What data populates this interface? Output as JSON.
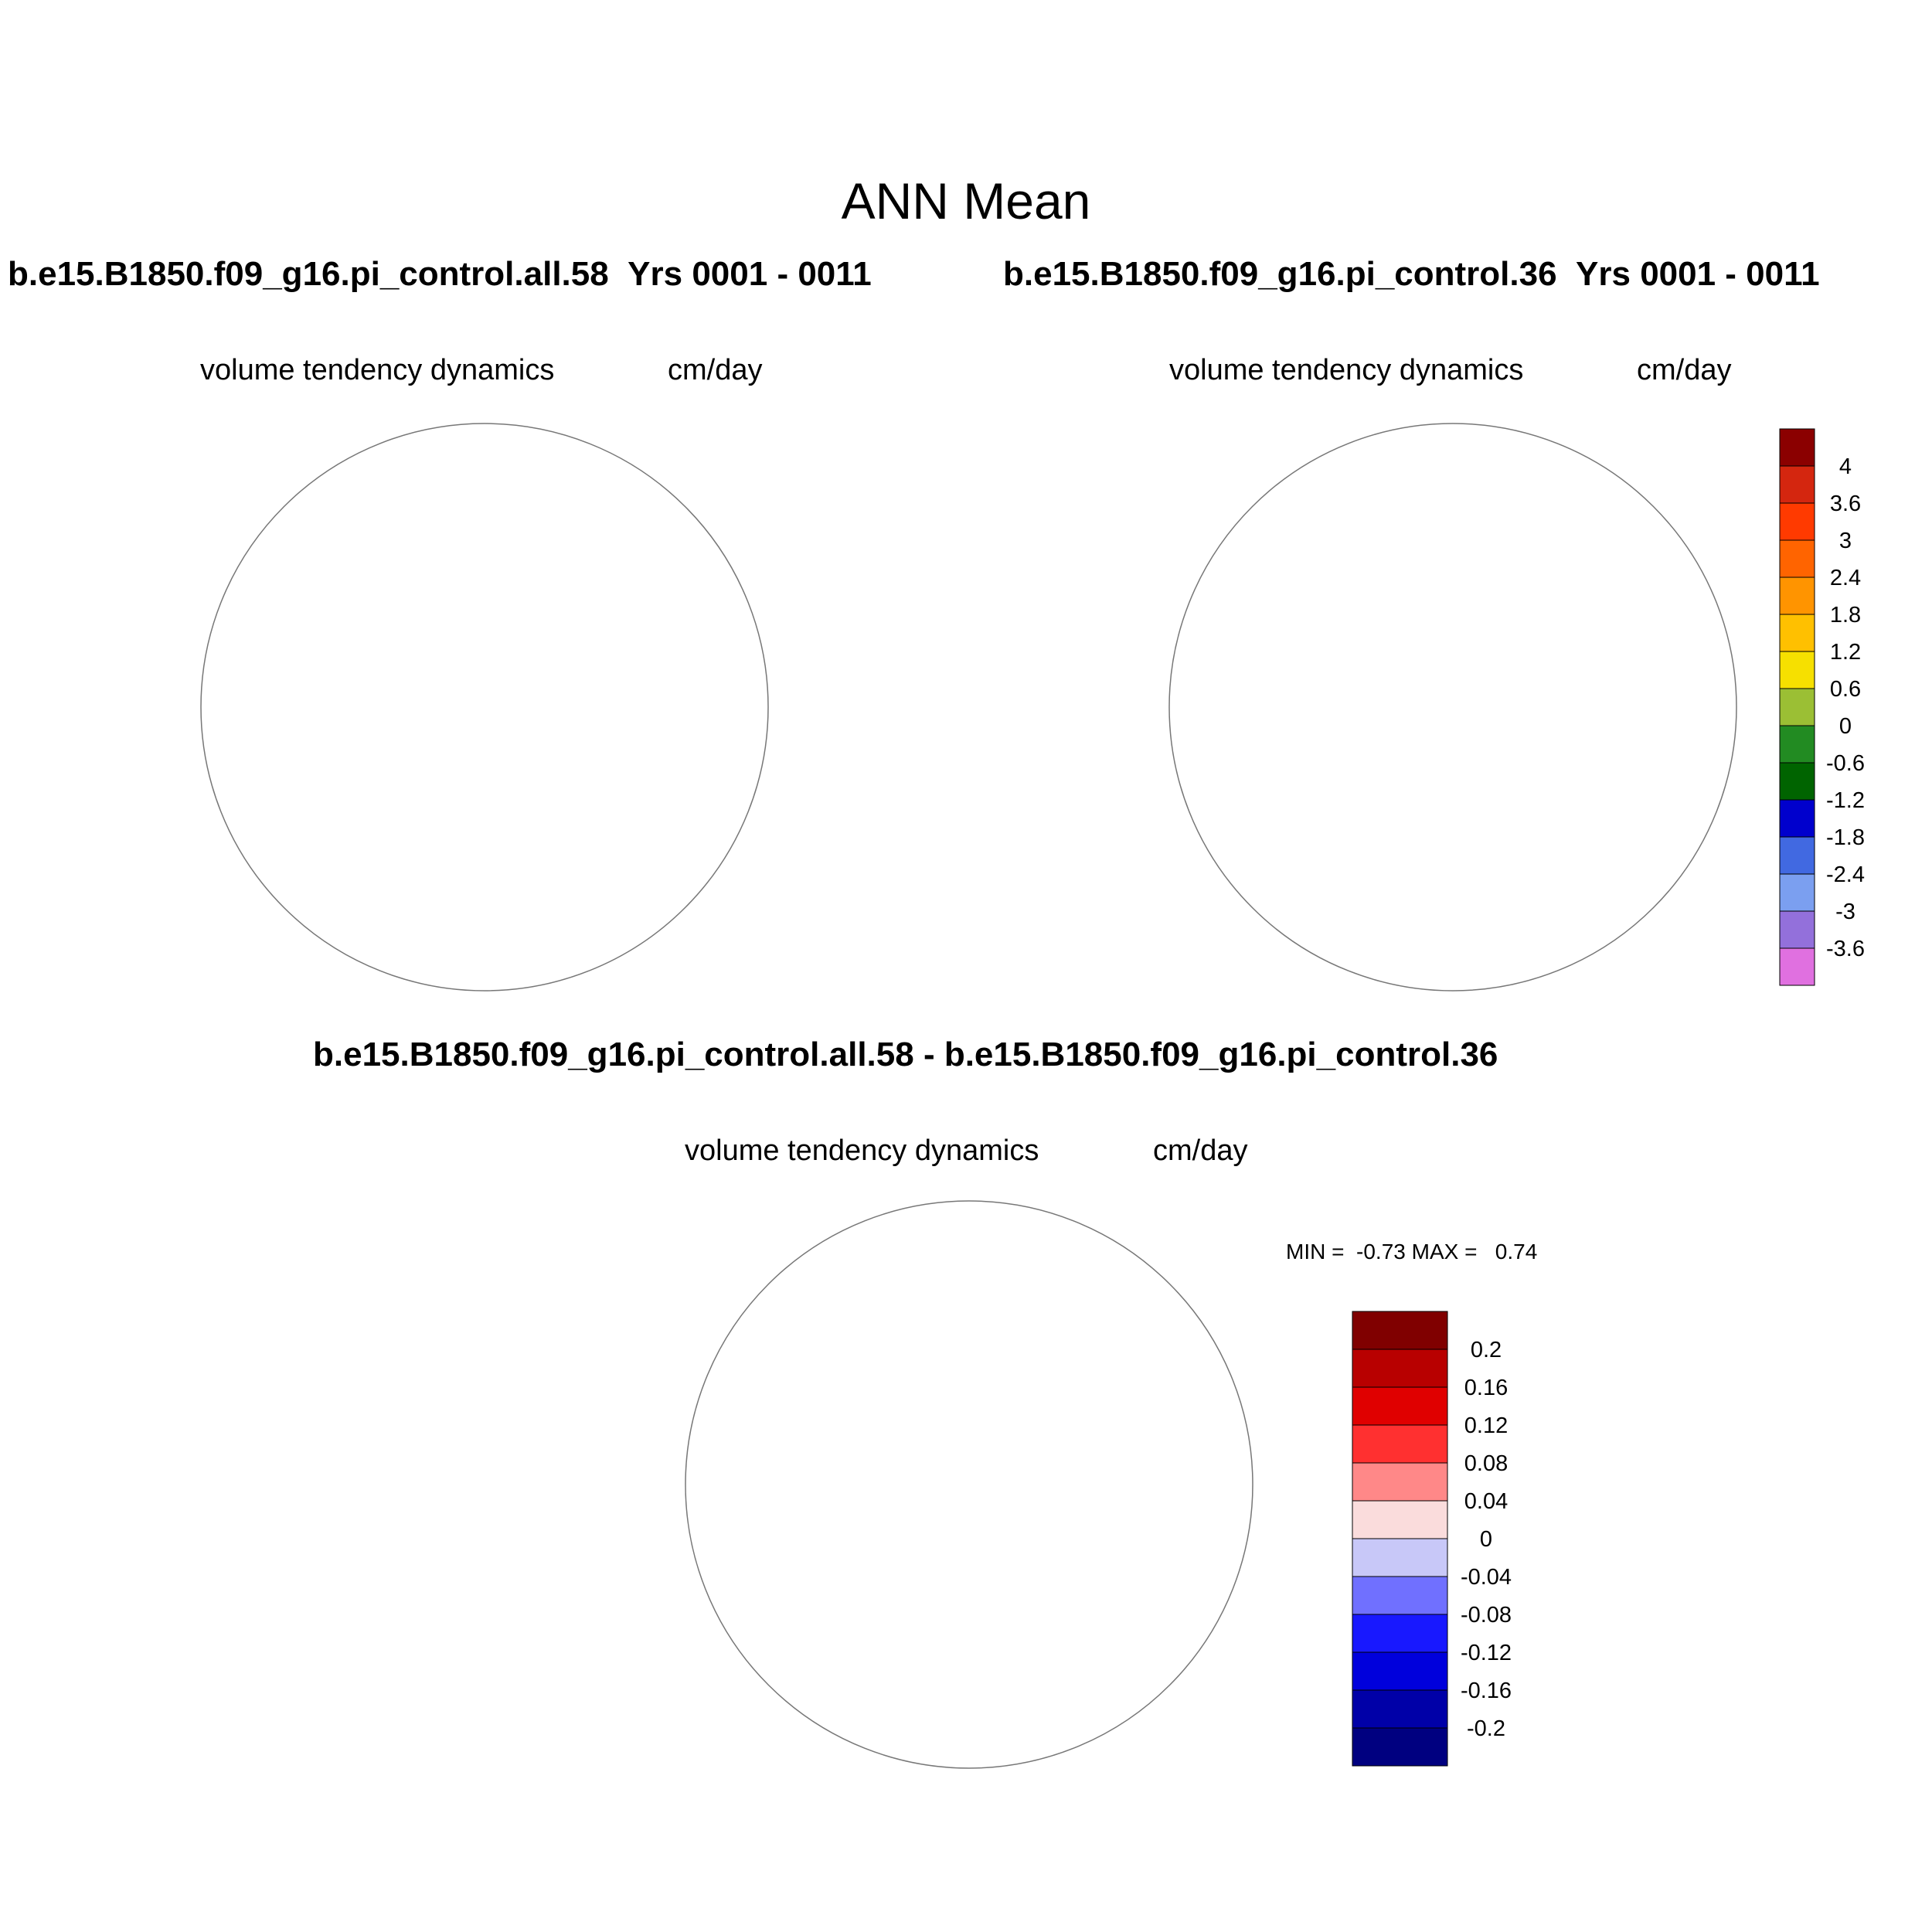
{
  "page": {
    "title": "ANN Mean"
  },
  "panels": [
    {
      "case": "b.e15.B1850.f09_g16.pi_control.all.58",
      "years": "Yrs 0001 - 0011",
      "variable": "volume tendency dynamics",
      "units": "cm/day"
    },
    {
      "case": "b.e15.B1850.f09_g16.pi_control.36",
      "years": "Yrs 0001 - 0011",
      "variable": "volume tendency dynamics",
      "units": "cm/day"
    },
    {
      "case": "b.e15.B1850.f09_g16.pi_control.all.58 - b.e15.B1850.f09_g16.pi_control.36",
      "variable": "volume tendency dynamics",
      "units": "cm/day",
      "min_label": "MIN =",
      "min": "-0.73",
      "max_label": "MAX =",
      "max": "0.74"
    }
  ],
  "colorbar_main": {
    "labels": [
      "4",
      "3.6",
      "3",
      "2.4",
      "1.8",
      "1.2",
      "0.6",
      "0",
      "-0.6",
      "-1.2",
      "-1.8",
      "-2.4",
      "-3",
      "-3.6"
    ],
    "colors": [
      "#8b0000",
      "#d4260f",
      "#ff3a00",
      "#ff6400",
      "#ff9400",
      "#ffc000",
      "#f6e000",
      "#9bbf34",
      "#228b22",
      "#006400",
      "#0000cd",
      "#4169e1",
      "#7b9ff0",
      "#9370db",
      "#e070e0"
    ]
  },
  "colorbar_diff": {
    "labels": [
      "0.2",
      "0.16",
      "0.12",
      "0.08",
      "0.04",
      "0",
      "-0.04",
      "-0.08",
      "-0.12",
      "-0.16",
      "-0.2"
    ],
    "colors": [
      "#800000",
      "#b80000",
      "#e00000",
      "#ff3030",
      "#ff8888",
      "#fadcdc",
      "#c8c8f8",
      "#7070ff",
      "#1818ff",
      "#0000dc",
      "#0000a8",
      "#000080"
    ]
  },
  "map_colors": {
    "land": "#c0c0c0",
    "ocean": "#ffffff",
    "grid": "#777777"
  }
}
